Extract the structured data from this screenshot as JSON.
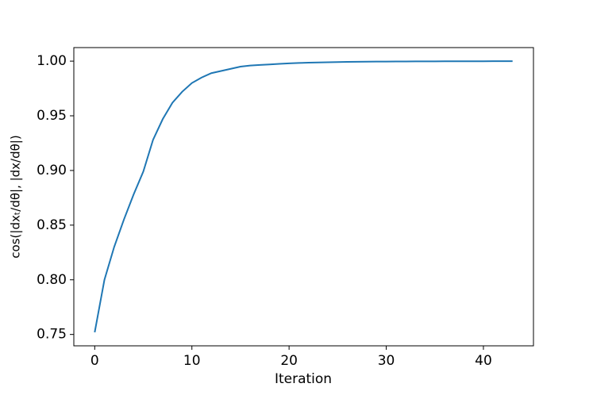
{
  "chart_data": {
    "type": "line",
    "x_label": "Iteration",
    "y_label": "cos(|dxₜ/dθ|, |dx/dθ|)",
    "x": [
      0,
      1,
      2,
      3,
      4,
      5,
      6,
      7,
      8,
      9,
      10,
      11,
      12,
      13,
      14,
      15,
      16,
      17,
      18,
      19,
      20,
      21,
      22,
      23,
      24,
      25,
      26,
      27,
      28,
      29,
      30,
      31,
      32,
      33,
      34,
      35,
      36,
      37,
      38,
      39,
      40,
      41,
      42,
      43
    ],
    "series": [
      {
        "color": "#1f77b4",
        "values": [
          0.752,
          0.8,
          0.83,
          0.855,
          0.878,
          0.899,
          0.928,
          0.947,
          0.962,
          0.972,
          0.98,
          0.985,
          0.989,
          0.991,
          0.993,
          0.995,
          0.996,
          0.9965,
          0.997,
          0.9975,
          0.998,
          0.9983,
          0.9986,
          0.9988,
          0.999,
          0.9992,
          0.9993,
          0.9994,
          0.9995,
          0.9996,
          0.9996,
          0.9997,
          0.9997,
          0.9998,
          0.9998,
          0.9998,
          0.9999,
          0.9999,
          0.9999,
          0.9999,
          0.9999,
          1.0,
          1.0,
          1.0
        ]
      }
    ],
    "xlim": [
      -2.15,
      45.15
    ],
    "ylim": [
      0.7396,
      1.0124
    ],
    "xticks": [
      0,
      10,
      20,
      30,
      40
    ],
    "yticks": [
      {
        "value": 0.75,
        "label": "0.75"
      },
      {
        "value": 0.8,
        "label": "0.80"
      },
      {
        "value": 0.85,
        "label": "0.85"
      },
      {
        "value": 0.9,
        "label": "0.90"
      },
      {
        "value": 0.95,
        "label": "0.95"
      },
      {
        "value": 1.0,
        "label": "1.00"
      }
    ]
  }
}
